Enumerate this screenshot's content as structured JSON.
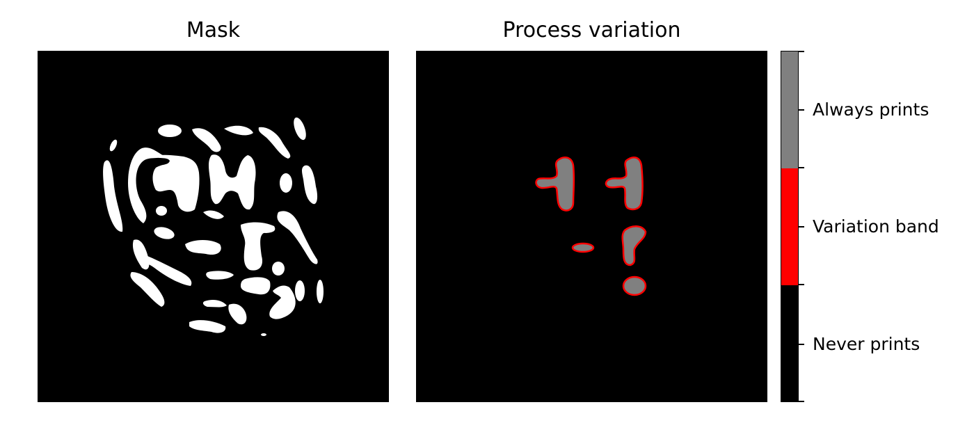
{
  "chart_data": [
    {
      "type": "heatmap",
      "title": "Mask",
      "colormap": {
        "0": "#000000",
        "1": "#ffffff"
      },
      "axes_visible": false,
      "grid": false
    },
    {
      "type": "heatmap",
      "title": "Process variation",
      "axes_visible": false,
      "grid": false,
      "colorbar": {
        "position": "right",
        "categories": [
          {
            "label": "Never prints",
            "color": "#000000"
          },
          {
            "label": "Variation band",
            "color": "#ff0000"
          },
          {
            "label": "Always prints",
            "color": "#808080"
          }
        ]
      }
    }
  ]
}
